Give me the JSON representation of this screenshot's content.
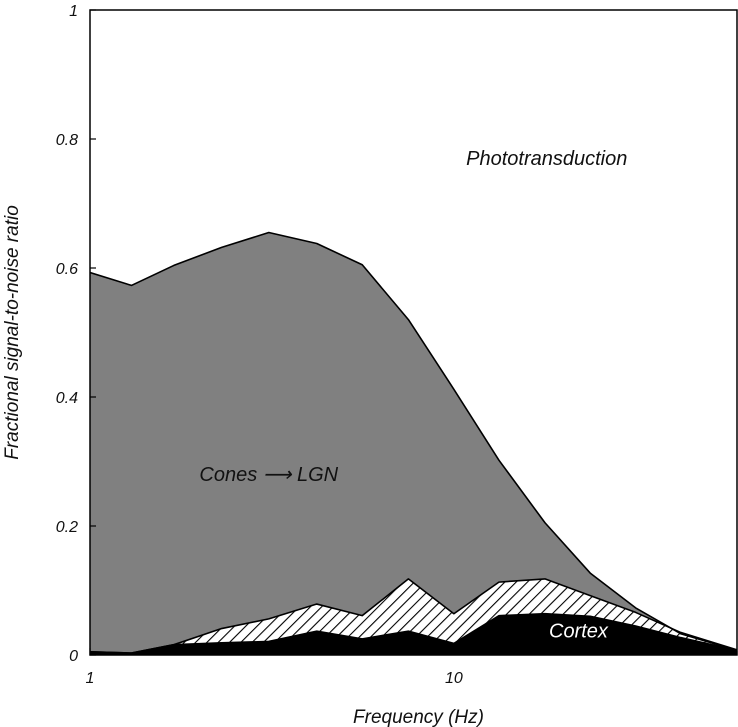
{
  "chart_data": {
    "type": "area",
    "xlabel": "Frequency (Hz)",
    "ylabel": "Fractional signal-to-noise ratio",
    "xscale": "log",
    "xlim": [
      1,
      60
    ],
    "ylim": [
      0,
      1
    ],
    "xticks": [
      {
        "value": 1,
        "label": "1"
      },
      {
        "value": 10,
        "label": "10"
      }
    ],
    "yticks": [
      {
        "value": 0,
        "label": "0"
      },
      {
        "value": 0.2,
        "label": "0.2"
      },
      {
        "value": 0.4,
        "label": "0.4"
      },
      {
        "value": 0.6,
        "label": "0.6"
      },
      {
        "value": 0.8,
        "label": "0.8"
      },
      {
        "value": 1,
        "label": "1"
      }
    ],
    "colors": {
      "phototransduction": "#ffffff",
      "cones_lgn": "#808080",
      "hatched": "#ffffff",
      "cortex": "#000000",
      "line": "#000000"
    },
    "series": [
      {
        "name": "Cones → LGN",
        "fill": "gray",
        "points": [
          [
            1,
            0.593
          ],
          [
            1.3,
            0.573
          ],
          [
            1.7,
            0.604
          ],
          [
            2.3,
            0.632
          ],
          [
            3.1,
            0.655
          ],
          [
            4.2,
            0.638
          ],
          [
            5.6,
            0.605
          ],
          [
            7.5,
            0.52
          ],
          [
            10,
            0.412
          ],
          [
            13.3,
            0.302
          ],
          [
            17.8,
            0.205
          ],
          [
            23.7,
            0.127
          ],
          [
            31.6,
            0.073
          ],
          [
            42,
            0.033
          ],
          [
            60,
            0.007
          ]
        ]
      },
      {
        "name": "",
        "fill": "hatched",
        "points": [
          [
            1,
            0.005
          ],
          [
            1.3,
            0.003
          ],
          [
            1.7,
            0.016
          ],
          [
            2.3,
            0.041
          ],
          [
            3.1,
            0.056
          ],
          [
            4.2,
            0.079
          ],
          [
            5.6,
            0.061
          ],
          [
            7.5,
            0.118
          ],
          [
            10,
            0.064
          ],
          [
            13.3,
            0.113
          ],
          [
            17.8,
            0.118
          ],
          [
            23.7,
            0.092
          ],
          [
            31.6,
            0.066
          ],
          [
            42,
            0.035
          ],
          [
            60,
            0.008
          ]
        ]
      },
      {
        "name": "Cortex",
        "fill": "black",
        "points": [
          [
            1,
            0.005
          ],
          [
            1.3,
            0.003
          ],
          [
            1.7,
            0.016
          ],
          [
            2.3,
            0.019
          ],
          [
            3.1,
            0.021
          ],
          [
            4.2,
            0.037
          ],
          [
            5.6,
            0.025
          ],
          [
            7.5,
            0.037
          ],
          [
            10,
            0.018
          ],
          [
            13.3,
            0.061
          ],
          [
            17.8,
            0.064
          ],
          [
            23.7,
            0.06
          ],
          [
            31.6,
            0.045
          ],
          [
            42,
            0.027
          ],
          [
            60,
            0.007
          ]
        ]
      }
    ],
    "annotations": [
      {
        "id": "phototransduction",
        "text": "Phototransduction",
        "x": 18,
        "y": 0.76,
        "color": "#111111"
      },
      {
        "id": "cones-lgn",
        "text": "Cones ⟶ LGN",
        "x": 3.1,
        "y": 0.27,
        "color": "#111111"
      },
      {
        "id": "cortex",
        "text": "Cortex",
        "x": 22,
        "y": 0.027,
        "color": "#ffffff"
      }
    ]
  }
}
